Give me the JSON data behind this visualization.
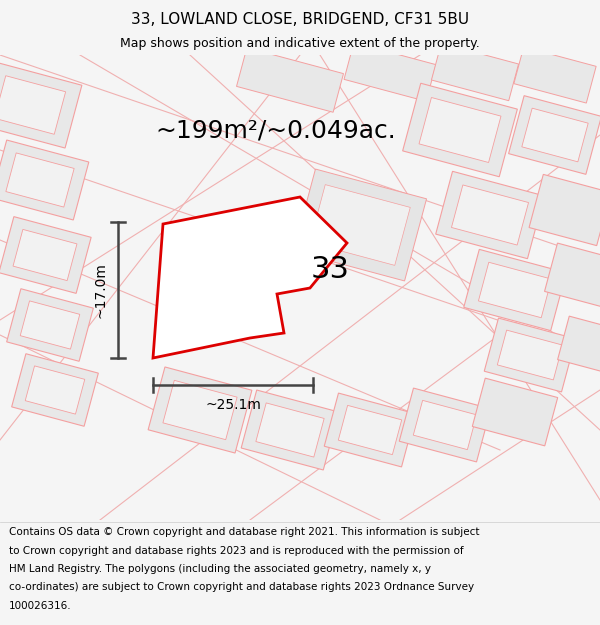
{
  "title": "33, LOWLAND CLOSE, BRIDGEND, CF31 5BU",
  "subtitle": "Map shows position and indicative extent of the property.",
  "area_text": "~199m²/~0.049ac.",
  "width_label": "~25.1m",
  "height_label": "~17.0m",
  "property_number": "33",
  "footer_lines": [
    "Contains OS data © Crown copyright and database right 2021. This information is subject",
    "to Crown copyright and database rights 2023 and is reproduced with the permission of",
    "HM Land Registry. The polygons (including the associated geometry, namely x, y",
    "co-ordinates) are subject to Crown copyright and database rights 2023 Ordnance Survey",
    "100026316."
  ],
  "bg_color": "#f5f5f5",
  "map_bg": "#ffffff",
  "property_outline_color": "#dd0000",
  "other_outline_color": "#f4a0a0",
  "other_fill": "#e8e8e8",
  "measure_color": "#444444",
  "title_fontsize": 11,
  "subtitle_fontsize": 9,
  "area_fontsize": 18,
  "number_fontsize": 22,
  "measure_fontsize": 10,
  "footer_fontsize": 7.5
}
